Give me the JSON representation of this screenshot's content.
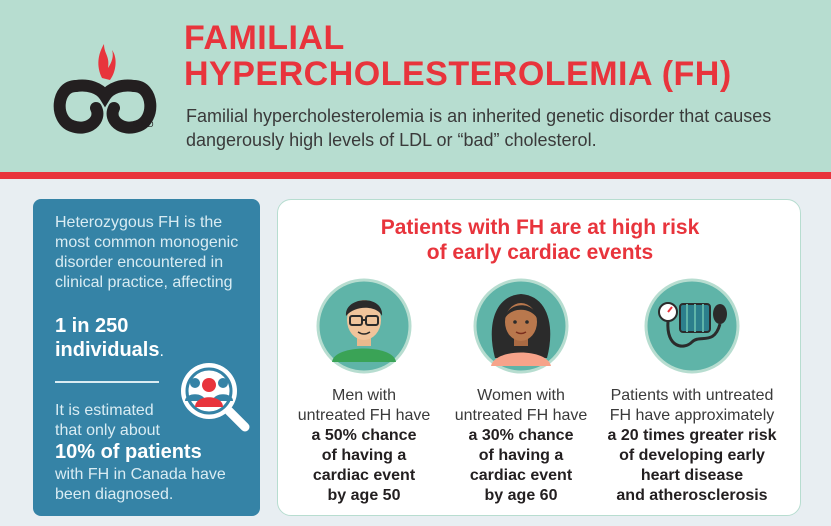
{
  "header": {
    "title_line1": "FAMILIAL",
    "title_line2": "HYPERCHOLESTEROLEMIA (FH)",
    "subtitle": "Familial hypercholesterolemia is an inherited genetic disorder that causes dangerously high levels of LDL or “bad” cholesterol.",
    "logo_mark": "® MD"
  },
  "left_panel": {
    "intro": "Heterozygous FH is the most common monogenic disorder encountered in clinical practice, affecting",
    "stat1_line1": "1 in 250",
    "stat1_line2": "individuals",
    "stat1_period": ".",
    "estimate": "It is estimated that only about",
    "stat2": "10% of patients",
    "conclusion": "with FH in Canada have been diagnosed."
  },
  "right_panel": {
    "heading_line1": "Patients with FH are at high risk",
    "heading_line2": "of early cardiac events",
    "columns": [
      {
        "icon": "man-icon",
        "text_line1": "Men with",
        "text_line2": "untreated FH have",
        "bold_line1": "a 50% chance",
        "bold_line2": "of having a",
        "bold_line3": "cardiac event",
        "bold_line4": "by age 50"
      },
      {
        "icon": "woman-icon",
        "text_line1": "Women with",
        "text_line2": "untreated FH have",
        "bold_line1": "a 30% chance",
        "bold_line2": "of having a",
        "bold_line3": "cardiac event",
        "bold_line4": "by age 60"
      },
      {
        "icon": "blood-pressure-monitor-icon",
        "text_line1": "Patients with untreated",
        "text_line2": "FH have approximately",
        "bold_line1": "a 20 times greater risk",
        "bold_line2": "of developing early",
        "bold_line3": "heart disease",
        "bold_line4": "and atherosclerosis"
      }
    ]
  },
  "colors": {
    "accent_red": "#e8343c",
    "header_green": "#b7ddd0",
    "panel_blue": "#3583a6",
    "background": "#e8eef2"
  }
}
